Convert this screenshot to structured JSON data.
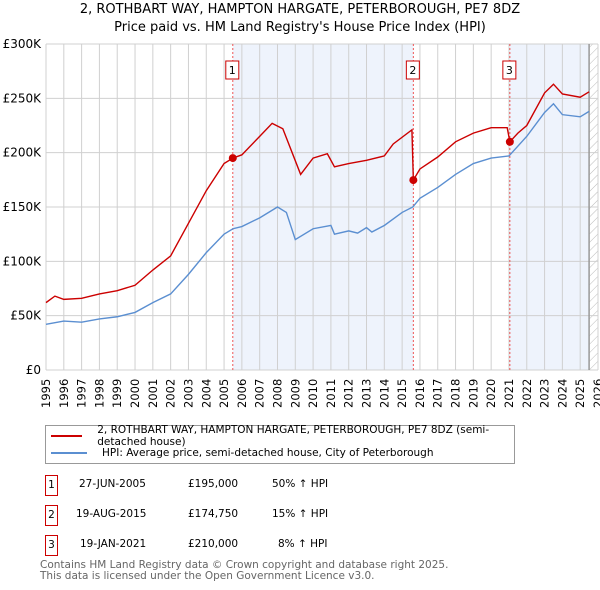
{
  "chart_data": {
    "type": "line",
    "title": "2, ROTHBART WAY, HAMPTON HARGATE, PETERBOROUGH, PE7 8DZ",
    "subtitle": "Price paid vs. HM Land Registry's House Price Index (HPI)",
    "xlim": [
      1995,
      2026
    ],
    "ylim": [
      0,
      300000
    ],
    "yticks": [
      0,
      50000,
      100000,
      150000,
      200000,
      250000,
      300000
    ],
    "ytick_labels": [
      "£0",
      "£50K",
      "£100K",
      "£150K",
      "£200K",
      "£250K",
      "£300K"
    ],
    "xticks": [
      1995,
      1996,
      1997,
      1998,
      1999,
      2000,
      2001,
      2002,
      2003,
      2004,
      2005,
      2006,
      2007,
      2008,
      2009,
      2010,
      2011,
      2012,
      2013,
      2014,
      2015,
      2016,
      2017,
      2018,
      2019,
      2020,
      2021,
      2022,
      2023,
      2024,
      2025,
      2026
    ],
    "grid": true,
    "series": [
      {
        "name": "2, ROTHBART WAY, HAMPTON HARGATE, PETERBOROUGH, PE7 8DZ (semi-detached house)",
        "color": "#cc0000",
        "x": [
          1995,
          1995.5,
          1996,
          1997,
          1998,
          1999,
          2000,
          2001,
          2002,
          2003,
          2004,
          2005,
          2005.49,
          2006,
          2007,
          2007.7,
          2008.3,
          2009.3,
          2010,
          2010.8,
          2011.2,
          2012,
          2013,
          2014,
          2014.5,
          2015.55,
          2015.63,
          2016,
          2017,
          2018,
          2019,
          2020,
          2020.9,
          2021.05,
          2021.5,
          2022,
          2023,
          2023.5,
          2024,
          2025,
          2025.5
        ],
        "y": [
          62000,
          68000,
          65000,
          66000,
          70000,
          73000,
          78000,
          92000,
          105000,
          135000,
          165000,
          190000,
          195000,
          198000,
          215000,
          227000,
          222000,
          180000,
          195000,
          199000,
          187000,
          190000,
          193000,
          197000,
          208000,
          221000,
          174750,
          185000,
          196000,
          210000,
          218000,
          223000,
          223000,
          210000,
          218000,
          225000,
          255000,
          263000,
          254000,
          251000,
          256000
        ]
      },
      {
        "name": "HPI: Average price, semi-detached house, City of Peterborough",
        "color": "#5b8fd1",
        "x": [
          1995,
          1996,
          1997,
          1998,
          1999,
          2000,
          2001,
          2002,
          2003,
          2004,
          2005,
          2005.5,
          2006,
          2007,
          2008,
          2008.5,
          2009,
          2010,
          2011,
          2011.2,
          2012,
          2012.5,
          2013,
          2013.3,
          2014,
          2015,
          2015.6,
          2016,
          2017,
          2018,
          2019,
          2020,
          2021,
          2022,
          2023,
          2023.5,
          2024,
          2025,
          2025.5
        ],
        "y": [
          42000,
          45000,
          44000,
          47000,
          49000,
          53000,
          62000,
          70000,
          88000,
          108000,
          125000,
          130000,
          132000,
          140000,
          150000,
          145000,
          120000,
          130000,
          133000,
          125000,
          128000,
          126000,
          131000,
          127000,
          133000,
          145000,
          150000,
          158000,
          168000,
          180000,
          190000,
          195000,
          197000,
          215000,
          237000,
          245000,
          235000,
          233000,
          238000
        ]
      }
    ],
    "sales": [
      {
        "n": "1",
        "date": "27-JUN-2005",
        "price": "£195,000",
        "hpi": "50% ↑ HPI",
        "x": 2005.49,
        "y": 195000
      },
      {
        "n": "2",
        "date": "19-AUG-2015",
        "price": "£174,750",
        "hpi": "15% ↑ HPI",
        "x": 2015.63,
        "y": 174750
      },
      {
        "n": "3",
        "date": "19-JAN-2021",
        "price": "£210,000",
        "hpi": "8% ↑ HPI",
        "x": 2021.05,
        "y": 210000
      }
    ],
    "shaded_ranges": [
      [
        2005.49,
        2015.63
      ],
      [
        2021.05,
        2025.5
      ]
    ],
    "hatched_from": 2025.5
  },
  "footer": {
    "line1": "Contains HM Land Registry data © Crown copyright and database right 2025.",
    "line2": "This data is licensed under the Open Government Licence v3.0."
  }
}
